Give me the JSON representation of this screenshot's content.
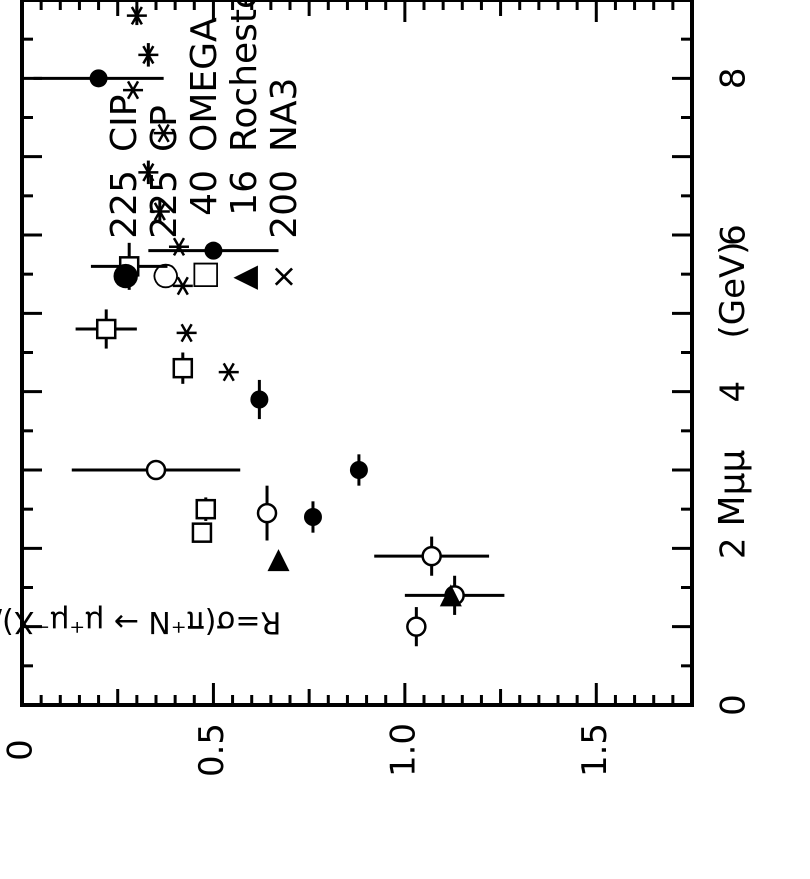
{
  "chart_data": {
    "type": "scatter",
    "orientation": "rotated-90-ccw",
    "xlabel": "Mμμ",
    "xunit": "(GeV)",
    "ylabel": "R=σ(π⁺N → μ⁺μ⁻X)/σ(π⁻N → μ⁺μ⁻X)",
    "xlim": [
      0,
      9
    ],
    "ylim": [
      0,
      1.75
    ],
    "xticks": [
      "0",
      "2",
      "4",
      "6",
      "8"
    ],
    "yticks": [
      "0",
      "0.5",
      "1.0",
      "1.5"
    ],
    "legend_position": "top-left",
    "legend": [
      {
        "symbol": "●",
        "energy": "225",
        "name": "CIP",
        "marker": "filled-circle"
      },
      {
        "symbol": "○",
        "energy": "225",
        "name": "CP",
        "marker": "open-circle"
      },
      {
        "symbol": "□",
        "energy": "40",
        "name": "OMEGA",
        "marker": "open-square"
      },
      {
        "symbol": "▲",
        "energy": "16",
        "name": "Rochester–BNL",
        "marker": "filled-triangle"
      },
      {
        "symbol": "×",
        "energy": "200",
        "name": "NA3",
        "marker": "asterisk"
      }
    ],
    "series": [
      {
        "name": "CIP",
        "marker": "filled-circle",
        "points": [
          {
            "x": 2.4,
            "y": 0.76,
            "xerr": 0.2,
            "yerr": 0.0
          },
          {
            "x": 3.0,
            "y": 0.88,
            "xerr": 0.2,
            "yerr": 0.0
          },
          {
            "x": 3.9,
            "y": 0.62,
            "xerr": 0.25,
            "yerr": 0.0
          },
          {
            "x": 5.8,
            "y": 0.5,
            "xerr": 0.0,
            "yerr": 0.17
          },
          {
            "x": 8.0,
            "y": 0.2,
            "xerr": 0.0,
            "yerr": 0.17
          }
        ]
      },
      {
        "name": "CP",
        "marker": "open-circle",
        "points": [
          {
            "x": 1.0,
            "y": 1.03,
            "xerr": 0.25,
            "yerr": 0.0
          },
          {
            "x": 1.4,
            "y": 1.13,
            "xerr": 0.25,
            "yerr": 0.13
          },
          {
            "x": 1.9,
            "y": 1.07,
            "xerr": 0.25,
            "yerr": 0.15
          },
          {
            "x": 2.45,
            "y": 0.64,
            "xerr": 0.35,
            "yerr": 0.0
          },
          {
            "x": 3.0,
            "y": 0.35,
            "xerr": 0.0,
            "yerr": 0.22
          }
        ]
      },
      {
        "name": "OMEGA",
        "marker": "open-square",
        "points": [
          {
            "x": 2.2,
            "y": 0.47,
            "xerr": 0.1,
            "yerr": 0.0
          },
          {
            "x": 2.5,
            "y": 0.48,
            "xerr": 0.15,
            "yerr": 0.0
          },
          {
            "x": 4.3,
            "y": 0.42,
            "xerr": 0.2,
            "yerr": 0.0
          },
          {
            "x": 4.8,
            "y": 0.22,
            "xerr": 0.25,
            "yerr": 0.08
          },
          {
            "x": 5.6,
            "y": 0.28,
            "xerr": 0.3,
            "yerr": 0.1
          }
        ]
      },
      {
        "name": "Rochester-BNL",
        "marker": "filled-triangle",
        "points": [
          {
            "x": 1.4,
            "y": 1.12,
            "xerr": 0.1,
            "yerr": 0.0
          },
          {
            "x": 1.85,
            "y": 0.67,
            "xerr": 0.0,
            "yerr": 0.0
          }
        ]
      },
      {
        "name": "NA3",
        "marker": "asterisk",
        "points": [
          {
            "x": 4.25,
            "y": 0.54,
            "xerr": 0.0,
            "yerr": 0.0
          },
          {
            "x": 4.75,
            "y": 0.43,
            "xerr": 0.0,
            "yerr": 0.0
          },
          {
            "x": 5.35,
            "y": 0.42,
            "xerr": 0.0,
            "yerr": 0.0
          },
          {
            "x": 5.85,
            "y": 0.41,
            "xerr": 0.0,
            "yerr": 0.0
          },
          {
            "x": 6.3,
            "y": 0.36,
            "xerr": 0.15,
            "yerr": 0.0
          },
          {
            "x": 6.8,
            "y": 0.33,
            "xerr": 0.15,
            "yerr": 0.0
          },
          {
            "x": 7.3,
            "y": 0.37,
            "xerr": 0.0,
            "yerr": 0.0
          },
          {
            "x": 7.85,
            "y": 0.29,
            "xerr": 0.0,
            "yerr": 0.0
          },
          {
            "x": 8.3,
            "y": 0.33,
            "xerr": 0.15,
            "yerr": 0.0
          },
          {
            "x": 8.8,
            "y": 0.3,
            "xerr": 0.12,
            "yerr": 0.0
          }
        ]
      }
    ]
  }
}
